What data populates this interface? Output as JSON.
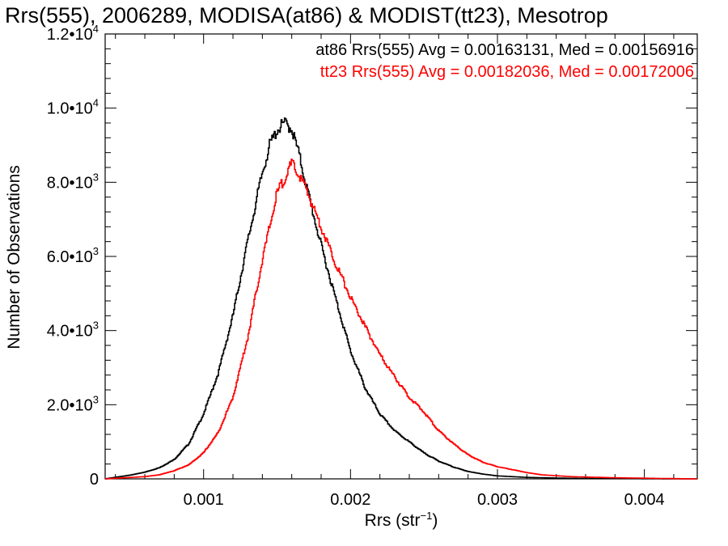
{
  "chart_data": {
    "type": "line",
    "title": "Rrs(555), 2006289, MODISA(at86) & MODIST(tt23), Mesotrop",
    "xlabel": "Rrs (str⁻¹)",
    "xlabel_main": "Rrs (str",
    "xlabel_exp": "−1",
    "xlabel_close": ")",
    "ylabel": "Number of Observations",
    "xlim": [
      0.00033,
      0.00436
    ],
    "ylim": [
      0,
      12000
    ],
    "x_ticks": [
      {
        "value": 0.001,
        "label": "0.001"
      },
      {
        "value": 0.002,
        "label": "0.002"
      },
      {
        "value": 0.003,
        "label": "0.003"
      },
      {
        "value": 0.004,
        "label": "0.004"
      }
    ],
    "y_ticks": [
      {
        "value": 0,
        "mant": "0",
        "exp": ""
      },
      {
        "value": 2000,
        "mant": "2.0•10",
        "exp": "3"
      },
      {
        "value": 4000,
        "mant": "4.0•10",
        "exp": "3"
      },
      {
        "value": 6000,
        "mant": "6.0•10",
        "exp": "3"
      },
      {
        "value": 8000,
        "mant": "8.0•10",
        "exp": "3"
      },
      {
        "value": 10000,
        "mant": "1.0•10",
        "exp": "4"
      },
      {
        "value": 12000,
        "mant": "1.2•10",
        "exp": "4"
      }
    ],
    "grid": false,
    "legend_position": "top-right",
    "series": [
      {
        "name": "at86",
        "color": "#000000",
        "legend_text": "at86 Rrs(555) Avg = 0.00163131, Med = 0.00156916",
        "x": [
          0.00033,
          0.0005,
          0.0006,
          0.0007,
          0.0008,
          0.0009,
          0.001,
          0.0011,
          0.0012,
          0.0013,
          0.0014,
          0.00145,
          0.0015,
          0.00155,
          0.0016,
          0.00165,
          0.0017,
          0.0018,
          0.0019,
          0.002,
          0.0021,
          0.0022,
          0.0023,
          0.0024,
          0.0025,
          0.0026,
          0.0027,
          0.0028,
          0.0029,
          0.003,
          0.0032,
          0.0035,
          0.004,
          0.00436
        ],
        "y": [
          0,
          100,
          180,
          300,
          520,
          950,
          1750,
          2850,
          4400,
          6400,
          8250,
          9000,
          9400,
          9600,
          9450,
          8750,
          7900,
          6300,
          4850,
          3450,
          2450,
          1750,
          1300,
          1000,
          700,
          480,
          320,
          200,
          130,
          80,
          40,
          15,
          5,
          0
        ]
      },
      {
        "name": "tt23",
        "color": "#ff0000",
        "legend_text": "tt23 Rrs(555) Avg = 0.00182036, Med = 0.00172006",
        "x": [
          0.00033,
          0.0006,
          0.0007,
          0.0008,
          0.0009,
          0.001,
          0.0011,
          0.0012,
          0.0013,
          0.0014,
          0.0015,
          0.0016,
          0.00165,
          0.0017,
          0.0018,
          0.0019,
          0.002,
          0.0021,
          0.0022,
          0.0023,
          0.0024,
          0.0025,
          0.0026,
          0.0027,
          0.0028,
          0.0029,
          0.003,
          0.0031,
          0.0032,
          0.0033,
          0.0035,
          0.0038,
          0.0041,
          0.00436
        ],
        "y": [
          0,
          60,
          110,
          220,
          380,
          700,
          1250,
          2200,
          3800,
          5900,
          7700,
          8500,
          8200,
          7800,
          6800,
          5800,
          4900,
          4100,
          3350,
          2750,
          2200,
          1800,
          1300,
          950,
          650,
          450,
          330,
          250,
          170,
          110,
          60,
          30,
          12,
          0
        ]
      }
    ]
  }
}
